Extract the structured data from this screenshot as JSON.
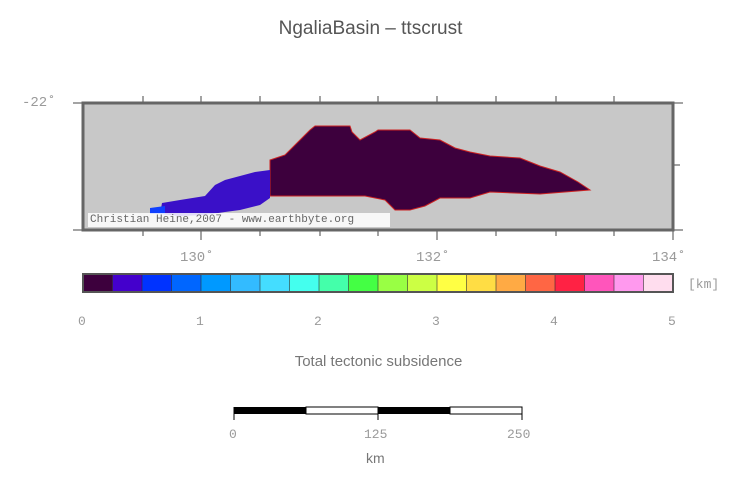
{
  "title": "NgaliaBasin – ttscrust",
  "map": {
    "lat_label": "-22˚",
    "lon_labels": [
      "130˚",
      "132˚",
      "134˚"
    ],
    "credit": "Christian Heine,2007 - www.earthbyte.org",
    "colors": {
      "land": "#c8c8c8",
      "frame": "#666666",
      "basin_main": "#3d003d",
      "basin_west": "#3a10c8",
      "basin_tip": "#1040ff",
      "outline": "#cc2222"
    }
  },
  "colorbar": {
    "unit": "[km]",
    "tick_labels": [
      "0",
      "1",
      "2",
      "3",
      "4",
      "5"
    ],
    "colors": [
      "#3d003d",
      "#4400cc",
      "#0033ff",
      "#0066ff",
      "#0099ff",
      "#33bbff",
      "#44ddff",
      "#44ffee",
      "#44ffaa",
      "#44ff44",
      "#99ff44",
      "#ccff44",
      "#ffff44",
      "#ffdd44",
      "#ffaa44",
      "#ff6644",
      "#ff2244",
      "#ff55bb",
      "#ff99ee",
      "#ffddee"
    ],
    "caption": "Total tectonic subsidence"
  },
  "scalebar": {
    "tick_labels": [
      "0",
      "125",
      "250"
    ],
    "unit": "km"
  }
}
